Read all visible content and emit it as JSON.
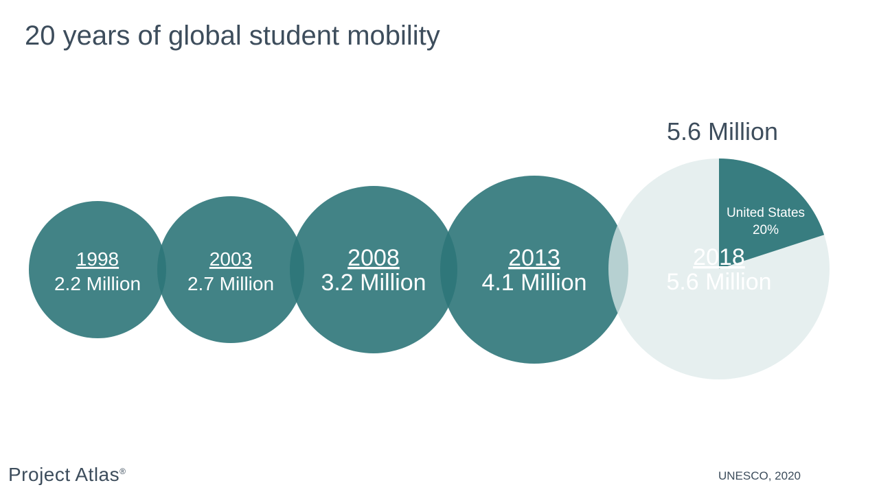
{
  "page": {
    "title": "20 years of global student mobility"
  },
  "colors": {
    "bubble": "#2e7679",
    "pie_rest": "#dde9ea",
    "text": "#3d4d5c"
  },
  "chart_data": {
    "type": "bubble",
    "title": "20 years of global student mobility",
    "series": [
      {
        "year": "1998",
        "value": 2.2,
        "label": "2.2 Million"
      },
      {
        "year": "2003",
        "value": 2.7,
        "label": "2.7 Million"
      },
      {
        "year": "2008",
        "value": 3.2,
        "label": "3.2 Million"
      },
      {
        "year": "2013",
        "value": 4.1,
        "label": "4.1 Million"
      },
      {
        "year": "2018",
        "value": 5.6,
        "label": "5.6 Million"
      }
    ],
    "highlight": {
      "total_label": "5.6 Million",
      "pie": [
        {
          "name": "United States",
          "share": 20,
          "label": "20%"
        },
        {
          "name": "",
          "share": 80
        }
      ]
    }
  },
  "footer": {
    "logo": "Project Atlas",
    "logo_mark": "®",
    "source": "UNESCO, 2020"
  }
}
